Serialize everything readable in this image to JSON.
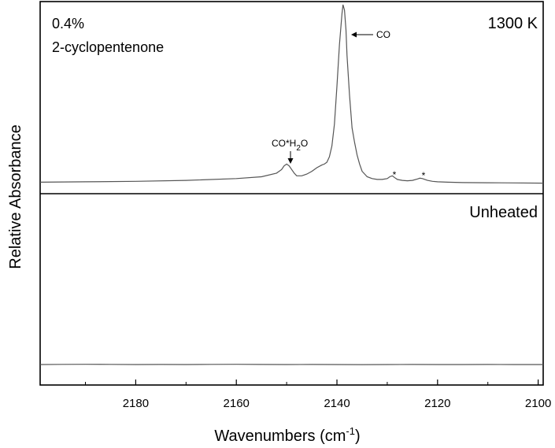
{
  "chart_data": {
    "type": "line",
    "xlabel": "Wavenumbers (cm",
    "xlabel_sup": "-1",
    "xlabel_close": ")",
    "ylabel": "Relative Absorbance",
    "xlim": [
      2199,
      2099
    ],
    "x_reversed": true,
    "x_ticks": [
      2180,
      2160,
      2140,
      2120,
      2100
    ],
    "x_tick_labels": [
      "2180",
      "2160",
      "2140",
      "2120",
      "2100"
    ],
    "grid": false,
    "panels": [
      {
        "label": "1300 K",
        "sample_line1": "0.4%",
        "sample_line2": "2-cyclopentenone",
        "annotations": {
          "co": "CO",
          "coh2o_a": "CO*H",
          "coh2o_sub": "2",
          "coh2o_b": "O",
          "star1": "*",
          "star2": "*"
        },
        "series": [
          {
            "x": [
              2199,
              2190,
              2180,
              2170,
              2160,
              2155,
              2152,
              2151,
              2150.5,
              2150,
              2149.5,
              2149,
              2148.5,
              2148,
              2147,
              2146,
              2145,
              2144,
              2143,
              2142.5,
              2142,
              2141.5,
              2141,
              2140.5,
              2140,
              2139.5,
              2139,
              2138.8,
              2138.5,
              2138.2,
              2138,
              2137.5,
              2137,
              2136.5,
              2136,
              2135.5,
              2135,
              2134,
              2133,
              2132,
              2131,
              2130,
              2129.5,
              2129,
              2128.5,
              2128,
              2127,
              2126,
              2125,
              2124,
              2123.5,
              2123,
              2122.5,
              2122,
              2121,
              2120,
              2118,
              2115,
              2110,
              2105,
              2099
            ],
            "y": [
              0.02,
              0.022,
              0.025,
              0.03,
              0.04,
              0.05,
              0.07,
              0.09,
              0.11,
              0.12,
              0.11,
              0.09,
              0.07,
              0.055,
              0.055,
              0.065,
              0.08,
              0.1,
              0.115,
              0.12,
              0.13,
              0.16,
              0.22,
              0.34,
              0.55,
              0.78,
              0.95,
              1.0,
              0.97,
              0.86,
              0.72,
              0.5,
              0.32,
              0.24,
              0.17,
              0.12,
              0.08,
              0.05,
              0.04,
              0.035,
              0.035,
              0.04,
              0.05,
              0.055,
              0.045,
              0.035,
              0.03,
              0.028,
              0.03,
              0.038,
              0.042,
              0.04,
              0.035,
              0.03,
              0.025,
              0.022,
              0.02,
              0.018,
              0.017,
              0.016,
              0.015
            ]
          }
        ]
      },
      {
        "label": "Unheated",
        "series": [
          {
            "x": [
              2199,
              2195,
              2190,
              2185,
              2180,
              2175,
              2170,
              2165,
              2160,
              2155,
              2150,
              2145,
              2140,
              2135,
              2130,
              2125,
              2120,
              2115,
              2110,
              2105,
              2099
            ],
            "y": [
              0.0,
              0.002,
              0.004,
              0.003,
              0.0,
              0.001,
              0.0,
              0.002,
              0.004,
              0.001,
              0.0,
              0.001,
              0.0,
              -0.001,
              0.0,
              0.001,
              0.0,
              0.0,
              0.001,
              0.0,
              0.0
            ]
          }
        ]
      }
    ]
  }
}
